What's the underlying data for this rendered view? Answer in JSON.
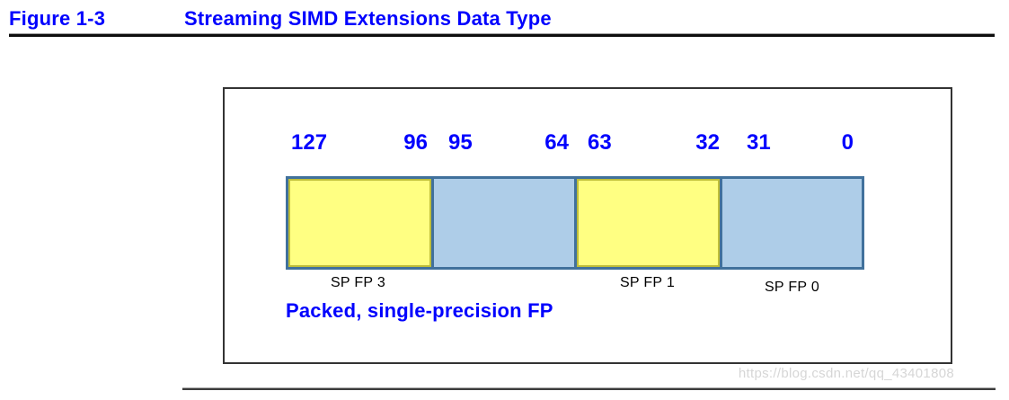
{
  "header": {
    "figure_label": "Figure 1-3",
    "figure_title": "Streaming SIMD Extensions Data Type"
  },
  "diagram": {
    "register_width_bits": 128,
    "caption": "Packed, single-precision FP",
    "cells": [
      {
        "hi_bit": "127",
        "lo_bit": "96",
        "label": "SP FP 3",
        "fill": "#FFFF82"
      },
      {
        "hi_bit": "95",
        "lo_bit": "64",
        "label": "",
        "fill": "#AECDE8"
      },
      {
        "hi_bit": "63",
        "lo_bit": "32",
        "label": "SP FP 1",
        "fill": "#FFFF82"
      },
      {
        "hi_bit": "31",
        "lo_bit": "0",
        "label": "SP FP 0",
        "fill": "#AECDE8"
      }
    ]
  },
  "watermark": {
    "text": "https://blog.csdn.net/qq_43401808",
    "color": "#D6D6D6"
  },
  "colors": {
    "accent_text_blue": "#0000FE",
    "strip_border_blue": "#41719C",
    "yellow_fill": "#FFFF82",
    "yellow_border": "#BFBE39",
    "blue_fill": "#AECDE8",
    "rule_black": "#0E0E0E"
  }
}
